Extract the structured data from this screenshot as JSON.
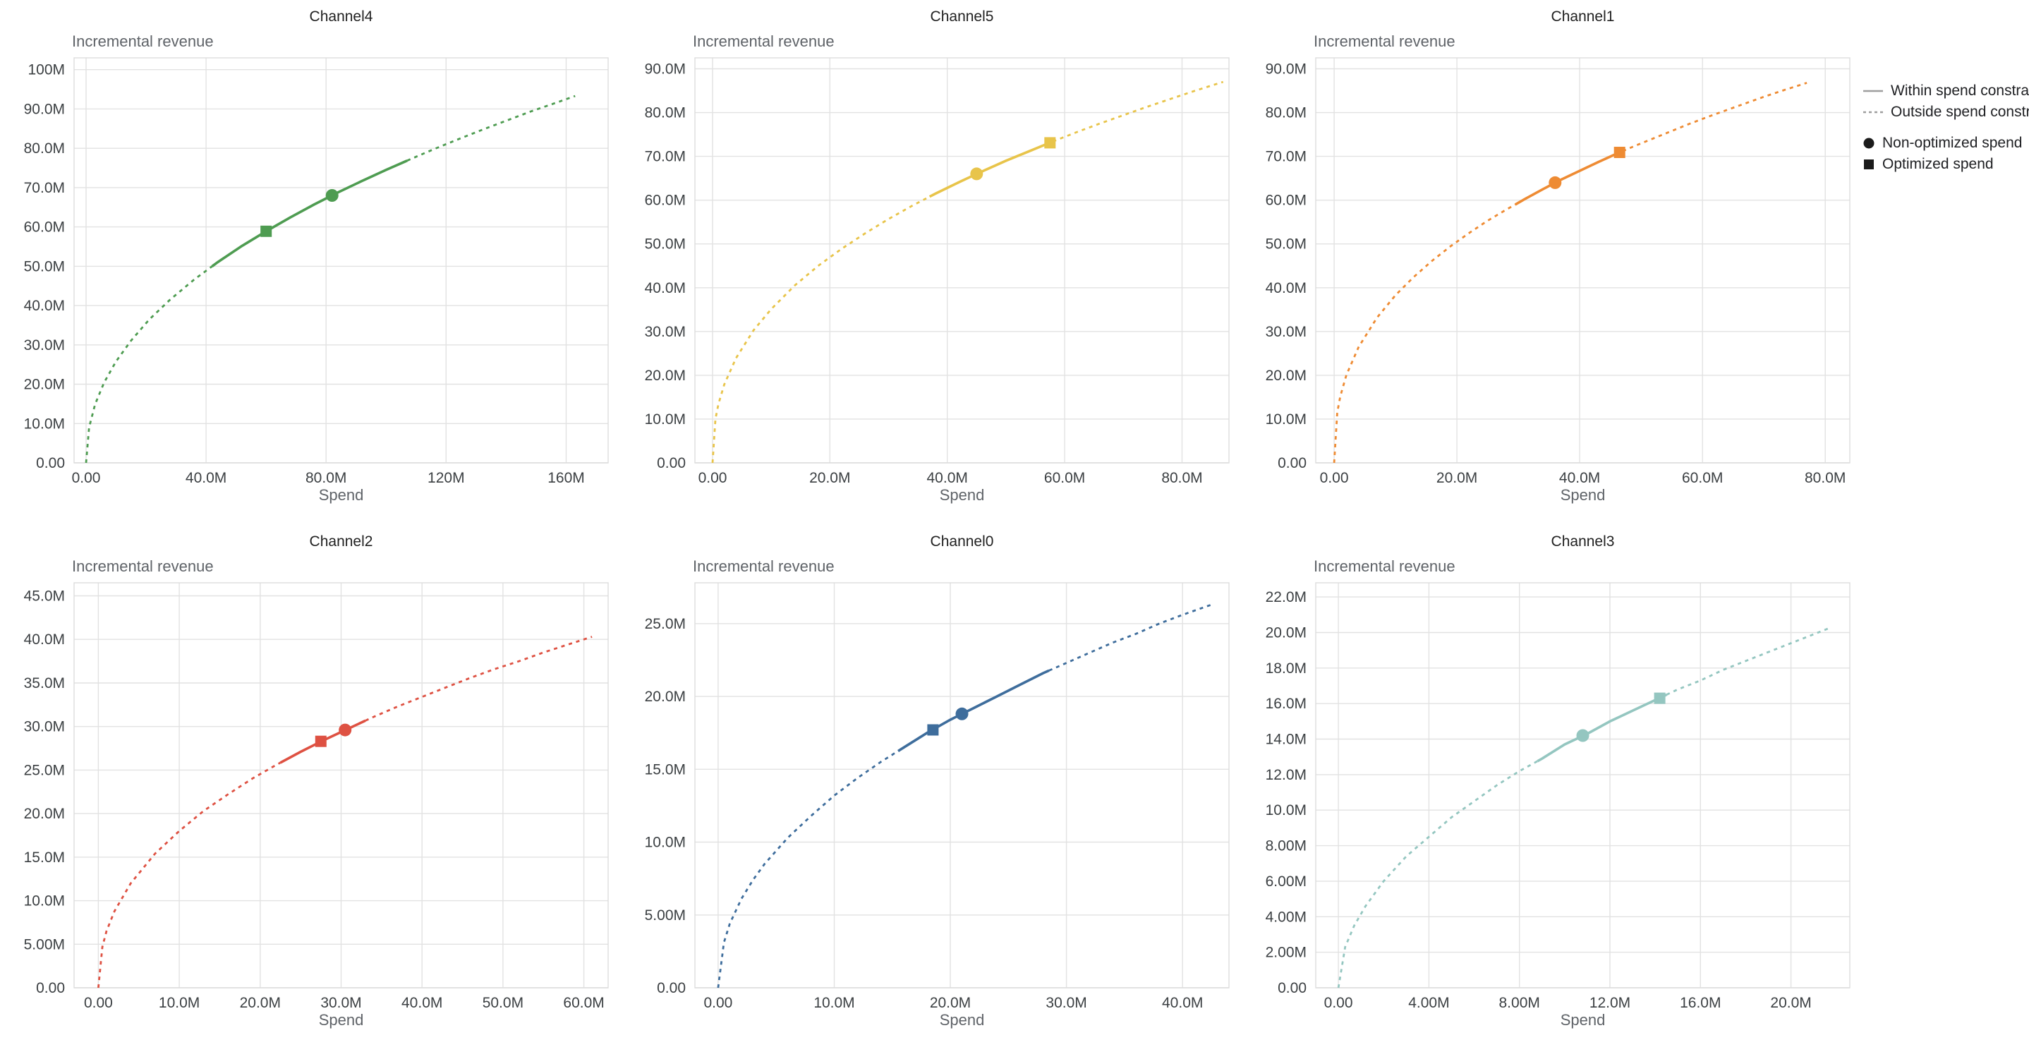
{
  "legend": {
    "within": "Within spend constraint",
    "outside": "Outside spend constraint",
    "non_optimized": "Non-optimized spend",
    "optimized": "Optimized spend",
    "line_color": "#9e9e9e",
    "marker_color": "#1b1b1b"
  },
  "chart_data": [
    {
      "type": "line",
      "title": "Channel4",
      "xlabel": "Spend",
      "ylabel": "Incremental revenue",
      "color": "#4e9c51",
      "xlim": [
        -4,
        174
      ],
      "ylim": [
        0,
        103
      ],
      "xtick_values": [
        0,
        40,
        80,
        120,
        160
      ],
      "xtick_labels": [
        "0.00",
        "40.0M",
        "80.0M",
        "120M",
        "160M"
      ],
      "ytick_values": [
        0,
        10,
        20,
        30,
        40,
        50,
        60,
        70,
        80,
        90,
        100
      ],
      "ytick_labels": [
        "0.00",
        "10.0M",
        "20.0M",
        "30.0M",
        "40.0M",
        "50.0M",
        "60.0M",
        "70.0M",
        "80.0M",
        "90.0M",
        "100M"
      ],
      "curve": [
        [
          0,
          0
        ],
        [
          1,
          9
        ],
        [
          3,
          14.9
        ],
        [
          6,
          20.4
        ],
        [
          10,
          25.8
        ],
        [
          15,
          31.1
        ],
        [
          21,
          36.4
        ],
        [
          28,
          41.5
        ],
        [
          36,
          46.6
        ],
        [
          44,
          51.1
        ],
        [
          52,
          55.2
        ],
        [
          60,
          58.9
        ],
        [
          68,
          62.4
        ],
        [
          76,
          65.7
        ],
        [
          84,
          68.8
        ],
        [
          92,
          71.7
        ],
        [
          100,
          74.5
        ],
        [
          108,
          77.2
        ],
        [
          116,
          79.8
        ],
        [
          124,
          82.3
        ],
        [
          132,
          84.7
        ],
        [
          140,
          87
        ],
        [
          148,
          89.3
        ],
        [
          156,
          91.4
        ],
        [
          163,
          93.3
        ]
      ],
      "within_constraint_range": [
        42,
        107
      ],
      "markers": {
        "non_optimized_spend": [
          82,
          68.0
        ],
        "optimized_spend": [
          60,
          58.9
        ]
      }
    },
    {
      "type": "line",
      "title": "Channel5",
      "xlabel": "Spend",
      "ylabel": "Incremental revenue",
      "color": "#e8c44a",
      "xlim": [
        -3,
        88
      ],
      "ylim": [
        0,
        92.5
      ],
      "xtick_values": [
        0,
        20,
        40,
        60,
        80
      ],
      "xtick_labels": [
        "0.00",
        "20.0M",
        "40.0M",
        "60.0M",
        "80.0M"
      ],
      "ytick_values": [
        0,
        10,
        20,
        30,
        40,
        50,
        60,
        70,
        80,
        90
      ],
      "ytick_labels": [
        "0.00",
        "10.0M",
        "20.0M",
        "30.0M",
        "40.0M",
        "50.0M",
        "60.0M",
        "70.0M",
        "80.0M",
        "90.0M"
      ],
      "curve": [
        [
          0,
          0
        ],
        [
          0.5,
          10
        ],
        [
          1,
          13.4
        ],
        [
          2,
          17.9
        ],
        [
          4,
          23.9
        ],
        [
          7,
          30.3
        ],
        [
          10,
          35.1
        ],
        [
          14,
          40.5
        ],
        [
          18,
          45
        ],
        [
          22,
          48.9
        ],
        [
          26,
          52.4
        ],
        [
          30,
          55.7
        ],
        [
          34,
          58.7
        ],
        [
          38,
          61.5
        ],
        [
          42,
          64.1
        ],
        [
          46,
          66.6
        ],
        [
          50,
          69
        ],
        [
          54,
          71.2
        ],
        [
          58,
          73.4
        ],
        [
          62,
          75.5
        ],
        [
          66,
          77.5
        ],
        [
          70,
          79.4
        ],
        [
          74,
          81.3
        ],
        [
          78,
          83.1
        ],
        [
          82,
          84.9
        ],
        [
          87,
          87
        ]
      ],
      "within_constraint_range": [
        37,
        58
      ],
      "markers": {
        "non_optimized_spend": [
          45,
          66.0
        ],
        "optimized_spend": [
          57.5,
          73.1
        ]
      }
    },
    {
      "type": "line",
      "title": "Channel1",
      "xlabel": "Spend",
      "ylabel": "Incremental revenue",
      "color": "#ee8b33",
      "xlim": [
        -3,
        84
      ],
      "ylim": [
        0,
        92.5
      ],
      "xtick_values": [
        0,
        20,
        40,
        60,
        80
      ],
      "xtick_labels": [
        "0.00",
        "20.0M",
        "40.0M",
        "60.0M",
        "80.0M"
      ],
      "ytick_values": [
        0,
        10,
        20,
        30,
        40,
        50,
        60,
        70,
        80,
        90
      ],
      "ytick_labels": [
        "0.00",
        "10.0M",
        "20.0M",
        "30.0M",
        "40.0M",
        "50.0M",
        "60.0M",
        "70.0M",
        "80.0M",
        "90.0M"
      ],
      "curve": [
        [
          0,
          0
        ],
        [
          0.5,
          11.5
        ],
        [
          1,
          15.2
        ],
        [
          2,
          20.1
        ],
        [
          4,
          26.5
        ],
        [
          7,
          33.2
        ],
        [
          10,
          38.3
        ],
        [
          13,
          42.5
        ],
        [
          16,
          46.2
        ],
        [
          19,
          49.5
        ],
        [
          22,
          52.5
        ],
        [
          25,
          55.3
        ],
        [
          28,
          57.8
        ],
        [
          31,
          60.2
        ],
        [
          34,
          62.5
        ],
        [
          37,
          64.7
        ],
        [
          40,
          66.7
        ],
        [
          43,
          68.7
        ],
        [
          46,
          70.6
        ],
        [
          49,
          72.4
        ],
        [
          52,
          74.1
        ],
        [
          55,
          75.8
        ],
        [
          58,
          77.5
        ],
        [
          61,
          79.1
        ],
        [
          64,
          80.6
        ],
        [
          67,
          82.1
        ],
        [
          70,
          83.6
        ],
        [
          73,
          85
        ],
        [
          77,
          86.8
        ]
      ],
      "within_constraint_range": [
        29.5,
        47
      ],
      "markers": {
        "non_optimized_spend": [
          36,
          64.0
        ],
        "optimized_spend": [
          46.5,
          70.9
        ]
      }
    },
    {
      "type": "line",
      "title": "Channel2",
      "xlabel": "Spend",
      "ylabel": "Incremental revenue",
      "color": "#de5142",
      "xlim": [
        -3,
        63
      ],
      "ylim": [
        0,
        46.5
      ],
      "xtick_values": [
        0,
        10,
        20,
        30,
        40,
        50,
        60
      ],
      "xtick_labels": [
        "0.00",
        "10.0M",
        "20.0M",
        "30.0M",
        "40.0M",
        "50.0M",
        "60.0M"
      ],
      "ytick_values": [
        0,
        5,
        10,
        15,
        20,
        25,
        30,
        35,
        40,
        45
      ],
      "ytick_labels": [
        "0.00",
        "5.00M",
        "10.0M",
        "15.0M",
        "20.0M",
        "25.0M",
        "30.0M",
        "35.0M",
        "40.0M",
        "45.0M"
      ],
      "curve": [
        [
          0,
          0
        ],
        [
          0.5,
          4.7
        ],
        [
          1,
          6.5
        ],
        [
          2,
          8.8
        ],
        [
          4,
          12
        ],
        [
          7,
          15.4
        ],
        [
          10,
          18
        ],
        [
          13,
          20.3
        ],
        [
          16,
          22.2
        ],
        [
          19,
          24
        ],
        [
          22,
          25.6
        ],
        [
          25,
          27.1
        ],
        [
          28,
          28.5
        ],
        [
          31,
          29.8
        ],
        [
          34,
          31.1
        ],
        [
          37,
          32.3
        ],
        [
          40,
          33.4
        ],
        [
          43,
          34.5
        ],
        [
          46,
          35.6
        ],
        [
          49,
          36.6
        ],
        [
          52,
          37.5
        ],
        [
          55,
          38.5
        ],
        [
          58,
          39.4
        ],
        [
          61,
          40.3
        ]
      ],
      "within_constraint_range": [
        22.5,
        33
      ],
      "markers": {
        "non_optimized_spend": [
          30.5,
          29.6
        ],
        "optimized_spend": [
          27.5,
          28.3
        ]
      }
    },
    {
      "type": "line",
      "title": "Channel0",
      "xlabel": "Spend",
      "ylabel": "Incremental revenue",
      "color": "#3e6d9c",
      "xlim": [
        -2,
        44
      ],
      "ylim": [
        0,
        27.8
      ],
      "xtick_values": [
        0,
        10,
        20,
        30,
        40
      ],
      "xtick_labels": [
        "0.00",
        "10.0M",
        "20.0M",
        "30.0M",
        "40.0M"
      ],
      "ytick_values": [
        0,
        5,
        10,
        15,
        20,
        25
      ],
      "ytick_labels": [
        "0.00",
        "5.00M",
        "10.0M",
        "15.0M",
        "20.0M",
        "25.0M"
      ],
      "curve": [
        [
          0,
          0
        ],
        [
          0.5,
          3.1
        ],
        [
          1,
          4.4
        ],
        [
          2,
          6.1
        ],
        [
          3,
          7.4
        ],
        [
          4,
          8.5
        ],
        [
          6,
          10.3
        ],
        [
          8,
          11.8
        ],
        [
          10,
          13.2
        ],
        [
          12,
          14.4
        ],
        [
          14,
          15.5
        ],
        [
          16,
          16.5
        ],
        [
          18,
          17.5
        ],
        [
          20,
          18.4
        ],
        [
          22,
          19.2
        ],
        [
          24,
          20
        ],
        [
          26,
          20.8
        ],
        [
          28,
          21.6
        ],
        [
          30,
          22.3
        ],
        [
          32,
          23
        ],
        [
          34,
          23.7
        ],
        [
          36,
          24.3
        ],
        [
          38,
          25
        ],
        [
          40,
          25.6
        ],
        [
          42.5,
          26.3
        ]
      ],
      "within_constraint_range": [
        15.5,
        28.5
      ],
      "markers": {
        "non_optimized_spend": [
          21,
          18.8
        ],
        "optimized_spend": [
          18.5,
          17.7
        ]
      }
    },
    {
      "type": "line",
      "title": "Channel3",
      "xlabel": "Spend",
      "ylabel": "Incremental revenue",
      "color": "#94c6c0",
      "xlim": [
        -1,
        22.6
      ],
      "ylim": [
        0,
        22.8
      ],
      "xtick_values": [
        0,
        4,
        8,
        12,
        16,
        20
      ],
      "xtick_labels": [
        "0.00",
        "4.00M",
        "8.00M",
        "12.0M",
        "16.0M",
        "20.0M"
      ],
      "ytick_values": [
        0,
        2,
        4,
        6,
        8,
        10,
        12,
        14,
        16,
        18,
        20,
        22
      ],
      "ytick_labels": [
        "0.00",
        "2.00M",
        "4.00M",
        "6.00M",
        "8.00M",
        "10.0M",
        "12.0M",
        "14.0M",
        "16.0M",
        "18.0M",
        "20.0M",
        "22.0M"
      ],
      "curve": [
        [
          0,
          0
        ],
        [
          0.3,
          2.3
        ],
        [
          0.7,
          3.5
        ],
        [
          1.2,
          4.6
        ],
        [
          2,
          6
        ],
        [
          3,
          7.4
        ],
        [
          4,
          8.5
        ],
        [
          5,
          9.6
        ],
        [
          6,
          10.5
        ],
        [
          7,
          11.4
        ],
        [
          8,
          12.2
        ],
        [
          9,
          12.9
        ],
        [
          10,
          13.7
        ],
        [
          11,
          14.3
        ],
        [
          12,
          15
        ],
        [
          13,
          15.6
        ],
        [
          14,
          16.2
        ],
        [
          15,
          16.8
        ],
        [
          16,
          17.3
        ],
        [
          17,
          17.9
        ],
        [
          18,
          18.4
        ],
        [
          19,
          18.9
        ],
        [
          20,
          19.4
        ],
        [
          21,
          19.9
        ],
        [
          21.8,
          20.3
        ]
      ],
      "within_constraint_range": [
        8.8,
        14.5
      ],
      "markers": {
        "non_optimized_spend": [
          10.8,
          14.2
        ],
        "optimized_spend": [
          14.2,
          16.3
        ]
      }
    }
  ]
}
